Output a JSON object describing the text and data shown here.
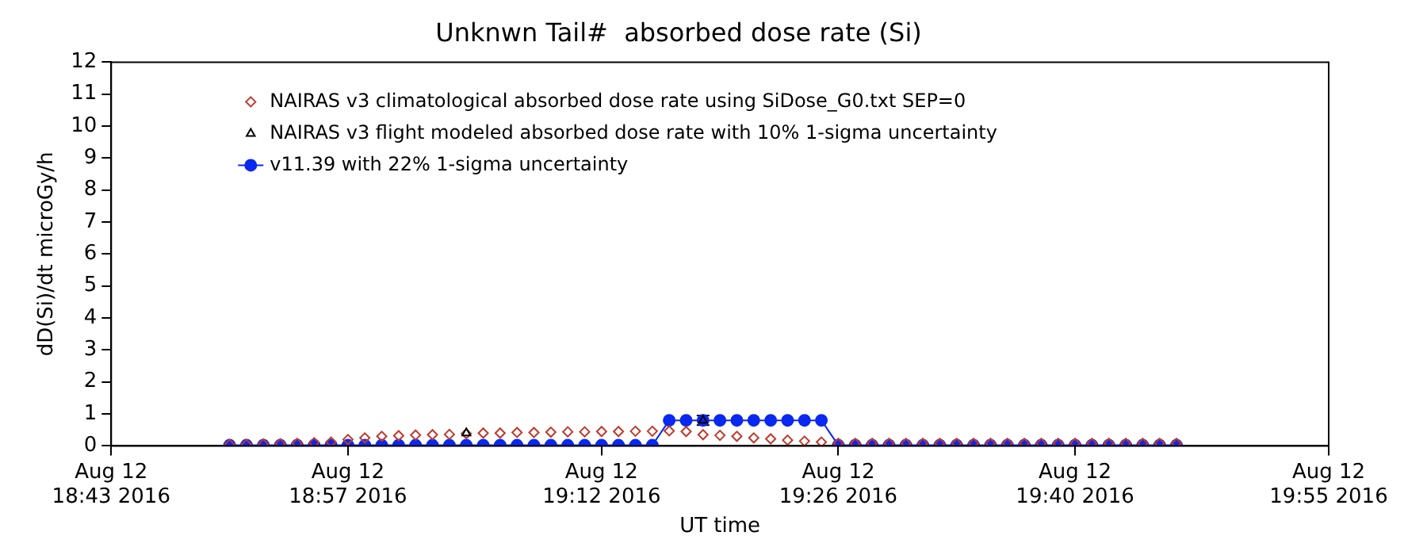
{
  "chart_data": {
    "type": "scatter",
    "title": "Unknwn Tail#  absorbed dose rate (Si)",
    "xlabel": "UT time",
    "ylabel": "dD(Si)/dt microGy/h",
    "x": [
      "2016-08-12T18:50",
      "2016-08-12T18:51",
      "2016-08-12T18:52",
      "2016-08-12T18:53",
      "2016-08-12T18:54",
      "2016-08-12T18:55",
      "2016-08-12T18:56",
      "2016-08-12T18:57",
      "2016-08-12T18:58",
      "2016-08-12T18:59",
      "2016-08-12T19:00",
      "2016-08-12T19:01",
      "2016-08-12T19:02",
      "2016-08-12T19:03",
      "2016-08-12T19:04",
      "2016-08-12T19:05",
      "2016-08-12T19:06",
      "2016-08-12T19:07",
      "2016-08-12T19:08",
      "2016-08-12T19:09",
      "2016-08-12T19:10",
      "2016-08-12T19:11",
      "2016-08-12T19:12",
      "2016-08-12T19:13",
      "2016-08-12T19:14",
      "2016-08-12T19:15",
      "2016-08-12T19:16",
      "2016-08-12T19:17",
      "2016-08-12T19:18",
      "2016-08-12T19:19",
      "2016-08-12T19:20",
      "2016-08-12T19:21",
      "2016-08-12T19:22",
      "2016-08-12T19:23",
      "2016-08-12T19:24",
      "2016-08-12T19:25",
      "2016-08-12T19:26",
      "2016-08-12T19:27",
      "2016-08-12T19:28",
      "2016-08-12T19:29",
      "2016-08-12T19:30",
      "2016-08-12T19:31",
      "2016-08-12T19:32",
      "2016-08-12T19:33",
      "2016-08-12T19:34",
      "2016-08-12T19:35",
      "2016-08-12T19:36",
      "2016-08-12T19:37",
      "2016-08-12T19:38",
      "2016-08-12T19:39",
      "2016-08-12T19:40",
      "2016-08-12T19:41",
      "2016-08-12T19:42",
      "2016-08-12T19:43",
      "2016-08-12T19:44",
      "2016-08-12T19:45",
      "2016-08-12T19:46"
    ],
    "series": [
      {
        "name": "NAIRAS v3 climatological absorbed dose rate using SiDose_G0.txt SEP=0",
        "marker": "diamond",
        "color": "#c0392b",
        "values": [
          0.05,
          0.05,
          0.06,
          0.07,
          0.08,
          0.1,
          0.12,
          0.2,
          0.25,
          0.3,
          0.32,
          0.34,
          0.35,
          0.36,
          0.38,
          0.4,
          0.4,
          0.42,
          0.42,
          0.43,
          0.44,
          0.44,
          0.45,
          0.45,
          0.46,
          0.46,
          0.47,
          0.45,
          0.35,
          0.33,
          0.3,
          0.25,
          0.22,
          0.18,
          0.15,
          0.12,
          0.08,
          0.08,
          0.08,
          0.08,
          0.08,
          0.08,
          0.08,
          0.08,
          0.08,
          0.08,
          0.08,
          0.08,
          0.08,
          0.08,
          0.08,
          0.08,
          0.08,
          0.08,
          0.08,
          0.08,
          0.08
        ]
      },
      {
        "name": "NAIRAS v3 flight modeled absorbed dose rate with 10% 1-sigma uncertainty",
        "marker": "triangle",
        "color": "#000000",
        "x": [
          "2016-08-12T19:04",
          "2016-08-12T19:18"
        ],
        "values": [
          0.4,
          0.8
        ],
        "errors": [
          null,
          0.15
        ]
      },
      {
        "name": "v11.39 with 22% 1-sigma uncertainty",
        "type": "line",
        "marker": "circle",
        "line_style": "solid",
        "color": "#0a28f0",
        "values": [
          0.02,
          0.02,
          0.02,
          0.02,
          0.02,
          0.02,
          0.02,
          0.02,
          0.02,
          0.02,
          0.02,
          0.02,
          0.02,
          0.02,
          0.02,
          0.02,
          0.02,
          0.02,
          0.02,
          0.02,
          0.02,
          0.02,
          0.02,
          0.02,
          0.02,
          0.02,
          0.8,
          0.8,
          0.8,
          0.8,
          0.8,
          0.8,
          0.8,
          0.8,
          0.8,
          0.8,
          0.02,
          0.02,
          0.02,
          0.02,
          0.02,
          0.02,
          0.02,
          0.02,
          0.02,
          0.02,
          0.02,
          0.02,
          0.02,
          0.02,
          0.02,
          0.02,
          0.02,
          0.02,
          0.02,
          0.02,
          0.02
        ]
      }
    ],
    "xlim": [
      "2016-08-12T18:43",
      "2016-08-12T19:55"
    ],
    "xticks": [
      {
        "value": "2016-08-12T18:43",
        "label": "Aug 12\n18:43 2016"
      },
      {
        "value": "2016-08-12T18:57",
        "label": "Aug 12\n18:57 2016"
      },
      {
        "value": "2016-08-12T19:12",
        "label": "Aug 12\n19:12 2016"
      },
      {
        "value": "2016-08-12T19:26",
        "label": "Aug 12\n19:26 2016"
      },
      {
        "value": "2016-08-12T19:40",
        "label": "Aug 12\n19:40 2016"
      },
      {
        "value": "2016-08-12T19:55",
        "label": "Aug 12\n19:55 2016"
      }
    ],
    "ylim": [
      0,
      12
    ],
    "yticks": [
      0,
      1,
      2,
      3,
      4,
      5,
      6,
      7,
      8,
      9,
      10,
      11,
      12
    ],
    "grid": false,
    "legend": "top left"
  }
}
